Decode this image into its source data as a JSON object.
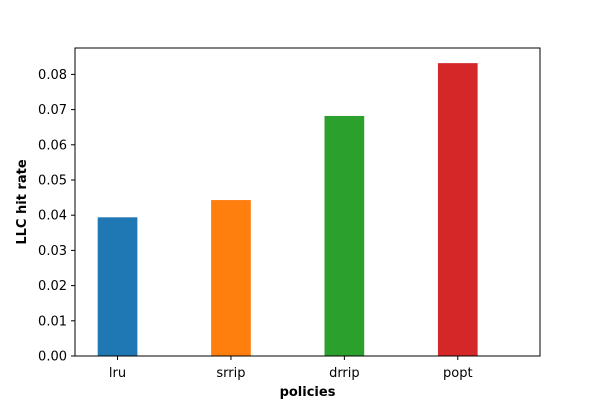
{
  "chart_data": {
    "type": "bar",
    "title": "",
    "xlabel": "policies",
    "ylabel": "LLC hit rate",
    "categories": [
      "lru",
      "srrip",
      "drrip",
      "popt"
    ],
    "values": [
      0.0394,
      0.0443,
      0.0682,
      0.0832
    ],
    "colors": [
      "#1f77b4",
      "#ff7f0e",
      "#2ca02c",
      "#d62728"
    ],
    "ylim": [
      0,
      0.0875
    ],
    "yticks": [
      0.0,
      0.01,
      0.02,
      0.03,
      0.04,
      0.05,
      0.06,
      0.07,
      0.08
    ],
    "ytick_labels": [
      "0.00",
      "0.01",
      "0.02",
      "0.03",
      "0.04",
      "0.05",
      "0.06",
      "0.07",
      "0.08"
    ],
    "grid": false,
    "legend": "none"
  }
}
